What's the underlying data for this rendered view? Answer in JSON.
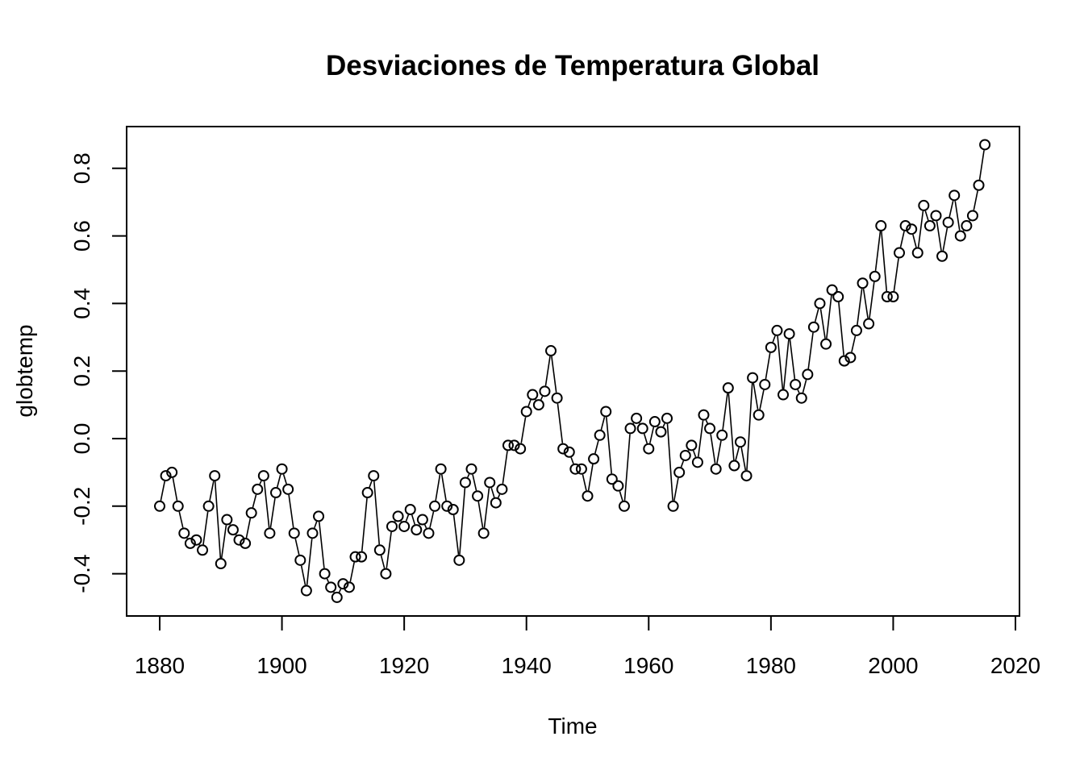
{
  "chart_data": {
    "type": "line",
    "title": "Desviaciones de Temperatura Global",
    "xlabel": "Time",
    "ylabel": "globtemp",
    "xlim": [
      1880,
      2015
    ],
    "ylim": [
      -0.47,
      0.87
    ],
    "x_ticks": [
      1880,
      1900,
      1920,
      1940,
      1960,
      1980,
      2000,
      2020
    ],
    "y_ticks": [
      -0.4,
      -0.2,
      0.0,
      0.2,
      0.4,
      0.6,
      0.8
    ],
    "x_tick_labels": [
      "1880",
      "1900",
      "1920",
      "1940",
      "1960",
      "1980",
      "2000",
      "2020"
    ],
    "y_tick_labels": [
      "-0.4",
      "-0.2",
      "0.0",
      "0.2",
      "0.4",
      "0.6",
      "0.8"
    ],
    "grid": false,
    "markers": "open-circle",
    "color": "#000000",
    "x": [
      1880,
      1881,
      1882,
      1883,
      1884,
      1885,
      1886,
      1887,
      1888,
      1889,
      1890,
      1891,
      1892,
      1893,
      1894,
      1895,
      1896,
      1897,
      1898,
      1899,
      1900,
      1901,
      1902,
      1903,
      1904,
      1905,
      1906,
      1907,
      1908,
      1909,
      1910,
      1911,
      1912,
      1913,
      1914,
      1915,
      1916,
      1917,
      1918,
      1919,
      1920,
      1921,
      1922,
      1923,
      1924,
      1925,
      1926,
      1927,
      1928,
      1929,
      1930,
      1931,
      1932,
      1933,
      1934,
      1935,
      1936,
      1937,
      1938,
      1939,
      1940,
      1941,
      1942,
      1943,
      1944,
      1945,
      1946,
      1947,
      1948,
      1949,
      1950,
      1951,
      1952,
      1953,
      1954,
      1955,
      1956,
      1957,
      1958,
      1959,
      1960,
      1961,
      1962,
      1963,
      1964,
      1965,
      1966,
      1967,
      1968,
      1969,
      1970,
      1971,
      1972,
      1973,
      1974,
      1975,
      1976,
      1977,
      1978,
      1979,
      1980,
      1981,
      1982,
      1983,
      1984,
      1985,
      1986,
      1987,
      1988,
      1989,
      1990,
      1991,
      1992,
      1993,
      1994,
      1995,
      1996,
      1997,
      1998,
      1999,
      2000,
      2001,
      2002,
      2003,
      2004,
      2005,
      2006,
      2007,
      2008,
      2009,
      2010,
      2011,
      2012,
      2013,
      2014,
      2015
    ],
    "values": [
      -0.2,
      -0.11,
      -0.1,
      -0.2,
      -0.28,
      -0.31,
      -0.3,
      -0.33,
      -0.2,
      -0.11,
      -0.37,
      -0.24,
      -0.27,
      -0.3,
      -0.31,
      -0.22,
      -0.15,
      -0.11,
      -0.28,
      -0.16,
      -0.09,
      -0.15,
      -0.28,
      -0.36,
      -0.45,
      -0.28,
      -0.23,
      -0.4,
      -0.44,
      -0.47,
      -0.43,
      -0.44,
      -0.35,
      -0.35,
      -0.16,
      -0.11,
      -0.33,
      -0.4,
      -0.26,
      -0.23,
      -0.26,
      -0.21,
      -0.27,
      -0.24,
      -0.28,
      -0.2,
      -0.09,
      -0.2,
      -0.21,
      -0.36,
      -0.13,
      -0.09,
      -0.17,
      -0.28,
      -0.13,
      -0.19,
      -0.15,
      -0.02,
      -0.02,
      -0.03,
      0.08,
      0.13,
      0.1,
      0.14,
      0.26,
      0.12,
      -0.03,
      -0.04,
      -0.09,
      -0.09,
      -0.17,
      -0.06,
      0.01,
      0.08,
      -0.12,
      -0.14,
      -0.2,
      0.03,
      0.06,
      0.03,
      -0.03,
      0.05,
      0.02,
      0.06,
      -0.2,
      -0.1,
      -0.05,
      -0.02,
      -0.07,
      0.07,
      0.03,
      -0.09,
      0.01,
      0.15,
      -0.08,
      -0.01,
      -0.11,
      0.18,
      0.07,
      0.16,
      0.27,
      0.32,
      0.13,
      0.31,
      0.16,
      0.12,
      0.19,
      0.33,
      0.4,
      0.28,
      0.44,
      0.42,
      0.23,
      0.24,
      0.32,
      0.46,
      0.34,
      0.48,
      0.63,
      0.42,
      0.42,
      0.55,
      0.63,
      0.62,
      0.55,
      0.69,
      0.63,
      0.66,
      0.54,
      0.64,
      0.72,
      0.6,
      0.63,
      0.66,
      0.75,
      0.87
    ]
  }
}
